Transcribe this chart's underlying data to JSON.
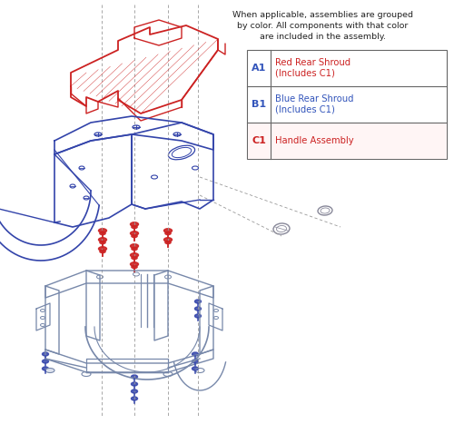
{
  "note_text": "When applicable, assemblies are grouped\nby color. All components with that color\nare included in the assembly.",
  "legend_items": [
    {
      "code": "A1",
      "desc": "Red Rear Shroud\n(Includes C1)",
      "code_color": "#3355bb",
      "desc_color": "#cc2222"
    },
    {
      "code": "B1",
      "desc": "Blue Rear Shroud\n(Includes C1)",
      "code_color": "#3355bb",
      "desc_color": "#3355bb"
    },
    {
      "code": "C1",
      "desc": "Handle Assembly",
      "code_color": "#cc2222",
      "desc_color": "#cc2222"
    }
  ],
  "blue": "#3344aa",
  "red": "#cc2222",
  "gray": "#8899bb",
  "frame": "#8899bb",
  "bg": "#ffffff",
  "dash": "#999999"
}
